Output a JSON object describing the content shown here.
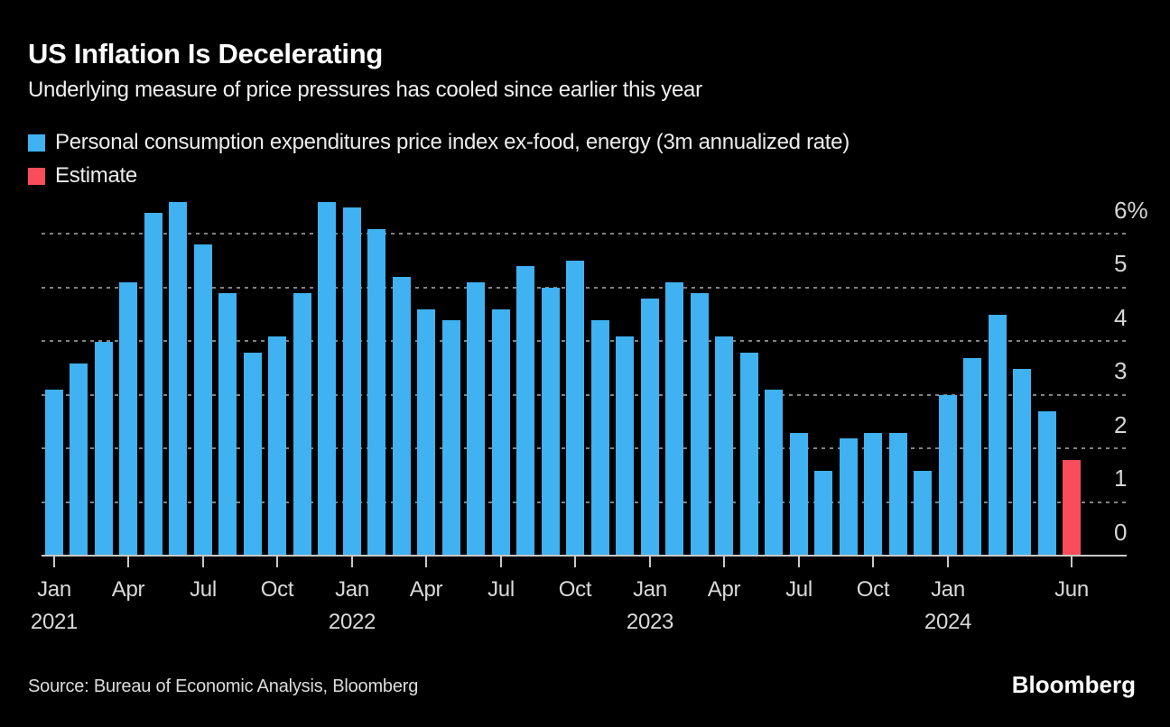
{
  "header": {
    "title": "US Inflation Is Decelerating",
    "subtitle": "Underlying measure of price pressures has cooled since earlier this year"
  },
  "legend": {
    "series_label": "Personal consumption expenditures price index ex-food, energy (3m annualized rate)",
    "estimate_label": "Estimate"
  },
  "colors": {
    "actual": "#40b1f1",
    "estimate": "#fa4d5b",
    "background": "#000000",
    "gridline": "#828282",
    "axis": "#c8c8c8",
    "text": "#ffffff"
  },
  "chart_data": {
    "type": "bar",
    "title": "US Inflation Is Decelerating",
    "subtitle": "Underlying measure of price pressures has cooled since earlier this year",
    "ylabel": "",
    "xlabel": "",
    "unit": "%",
    "ylim": [
      0,
      6.6
    ],
    "yticks": [
      0,
      1,
      2,
      3,
      4,
      5,
      6
    ],
    "ytick_labels": [
      "0",
      "1",
      "2",
      "3",
      "4",
      "5",
      "6%"
    ],
    "grid": "horizontal-dashed",
    "legend_position": "top-left",
    "categories": [
      "Jan 2021",
      "Feb 2021",
      "Mar 2021",
      "Apr 2021",
      "May 2021",
      "Jun 2021",
      "Jul 2021",
      "Aug 2021",
      "Sep 2021",
      "Oct 2021",
      "Nov 2021",
      "Dec 2021",
      "Jan 2022",
      "Feb 2022",
      "Mar 2022",
      "Apr 2022",
      "May 2022",
      "Jun 2022",
      "Jul 2022",
      "Aug 2022",
      "Sep 2022",
      "Oct 2022",
      "Nov 2022",
      "Dec 2022",
      "Jan 2023",
      "Feb 2023",
      "Mar 2023",
      "Apr 2023",
      "May 2023",
      "Jun 2023",
      "Jul 2023",
      "Aug 2023",
      "Sep 2023",
      "Oct 2023",
      "Nov 2023",
      "Dec 2023",
      "Jan 2024",
      "Feb 2024",
      "Mar 2024",
      "Apr 2024",
      "May 2024",
      "Jun 2024"
    ],
    "values": [
      3.1,
      3.6,
      4.0,
      5.1,
      6.4,
      6.6,
      5.8,
      4.9,
      3.8,
      4.1,
      4.9,
      6.6,
      6.5,
      6.1,
      5.2,
      4.6,
      4.4,
      5.1,
      4.6,
      5.4,
      5.0,
      5.5,
      4.4,
      4.1,
      4.8,
      5.1,
      4.9,
      4.1,
      3.8,
      3.1,
      2.3,
      1.6,
      2.2,
      2.3,
      2.3,
      1.6,
      3.0,
      3.7,
      4.5,
      3.5,
      2.7,
      1.8
    ],
    "estimate_indices": [
      41
    ],
    "estimate_month": "Jun 2024",
    "xticks": [
      {
        "month_index": 0,
        "label": "Jan",
        "year": "2021"
      },
      {
        "month_index": 3,
        "label": "Apr"
      },
      {
        "month_index": 6,
        "label": "Jul"
      },
      {
        "month_index": 9,
        "label": "Oct"
      },
      {
        "month_index": 12,
        "label": "Jan",
        "year": "2022"
      },
      {
        "month_index": 15,
        "label": "Apr"
      },
      {
        "month_index": 18,
        "label": "Jul"
      },
      {
        "month_index": 21,
        "label": "Oct"
      },
      {
        "month_index": 24,
        "label": "Jan",
        "year": "2023"
      },
      {
        "month_index": 27,
        "label": "Apr"
      },
      {
        "month_index": 30,
        "label": "Jul"
      },
      {
        "month_index": 33,
        "label": "Oct"
      },
      {
        "month_index": 36,
        "label": "Jan",
        "year": "2024"
      },
      {
        "month_index": 41,
        "label": "Jun"
      }
    ]
  },
  "footer": {
    "source": "Source: Bureau of Economic Analysis, Bloomberg",
    "brand": "Bloomberg"
  }
}
